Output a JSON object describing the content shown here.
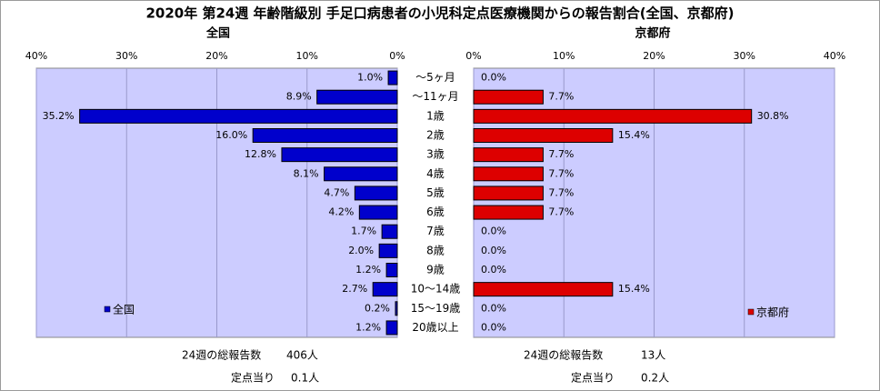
{
  "title": "2020年 第24週 年齢階級別 手足口病患者の小児科定点医療機関からの報告割合(全国、京都府)",
  "chart_data": [
    {
      "type": "bar",
      "orientation": "horizontal",
      "direction": "right-to-left",
      "panel_title": "全国",
      "xlim": [
        0,
        40
      ],
      "ticks": [
        "40%",
        "30%",
        "20%",
        "10%",
        "0%"
      ],
      "grid": true,
      "legend_position": "bottom-left",
      "categories": [
        "～5ヶ月",
        "～11ヶ月",
        "1歳",
        "2歳",
        "3歳",
        "4歳",
        "5歳",
        "6歳",
        "7歳",
        "8歳",
        "9歳",
        "10～14歳",
        "15～19歳",
        "20歳以上"
      ],
      "series": [
        {
          "name": "全国",
          "color": "#0000cc",
          "values": [
            1.0,
            8.9,
            35.2,
            16.0,
            12.8,
            8.1,
            4.7,
            4.2,
            1.7,
            2.0,
            1.2,
            2.7,
            0.2,
            1.2
          ],
          "labels": [
            "1.0%",
            "8.9%",
            "35.2%",
            "16.0%",
            "12.8%",
            "8.1%",
            "4.7%",
            "4.2%",
            "1.7%",
            "2.0%",
            "1.2%",
            "2.7%",
            "0.2%",
            "1.2%"
          ]
        }
      ]
    },
    {
      "type": "bar",
      "orientation": "horizontal",
      "direction": "left-to-right",
      "panel_title": "京都府",
      "xlim": [
        0,
        40
      ],
      "ticks": [
        "0%",
        "10%",
        "20%",
        "30%",
        "40%"
      ],
      "grid": true,
      "legend_position": "bottom-right",
      "categories": [
        "～5ヶ月",
        "～11ヶ月",
        "1歳",
        "2歳",
        "3歳",
        "4歳",
        "5歳",
        "6歳",
        "7歳",
        "8歳",
        "9歳",
        "10～14歳",
        "15～19歳",
        "20歳以上"
      ],
      "series": [
        {
          "name": "京都府",
          "color": "#dd0000",
          "values": [
            0.0,
            7.7,
            30.8,
            15.4,
            7.7,
            7.7,
            7.7,
            7.7,
            0.0,
            0.0,
            0.0,
            15.4,
            0.0,
            0.0
          ],
          "labels": [
            "0.0%",
            "7.7%",
            "30.8%",
            "15.4%",
            "7.7%",
            "7.7%",
            "7.7%",
            "7.7%",
            "0.0%",
            "0.0%",
            "0.0%",
            "15.4%",
            "0.0%",
            "0.0%"
          ]
        }
      ]
    }
  ],
  "footer": {
    "national_total_label": "24週の総報告数",
    "national_total_value": "406人",
    "national_per_label": "定点当り",
    "national_per_value": "0.1人",
    "kyoto_total_label": "24週の総報告数",
    "kyoto_total_value": "13人",
    "kyoto_per_label": "定点当り",
    "kyoto_per_value": "0.2人"
  },
  "colors": {
    "plot_bg": "#ccccff",
    "grid": "#9999cc",
    "national": "#0000cc",
    "kyoto": "#dd0000"
  }
}
